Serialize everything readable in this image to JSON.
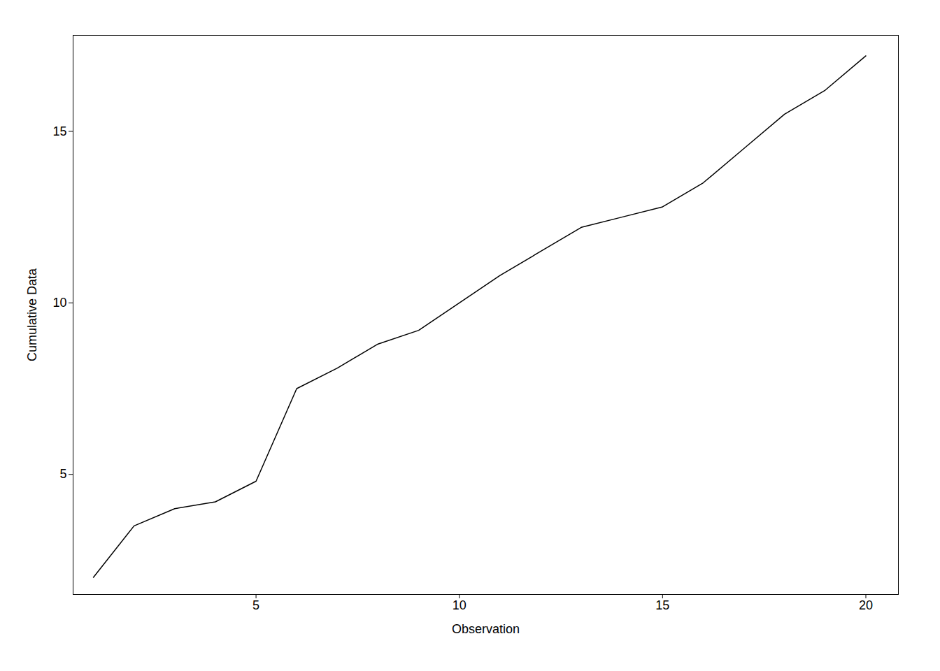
{
  "chart_data": {
    "type": "line",
    "xlabel": "Observation",
    "ylabel": "Cumulative Data",
    "x": [
      1,
      2,
      3,
      4,
      5,
      6,
      7,
      8,
      9,
      10,
      11,
      12,
      13,
      14,
      15,
      16,
      17,
      18,
      19,
      20
    ],
    "values": [
      2.0,
      3.5,
      4.0,
      4.2,
      4.8,
      7.5,
      8.1,
      8.8,
      9.2,
      10.0,
      10.8,
      11.5,
      12.2,
      12.5,
      12.8,
      13.5,
      14.5,
      15.5,
      16.2,
      17.2
    ],
    "color": "#000000",
    "xlim": [
      0.5,
      20.8
    ],
    "ylim": [
      1.5,
      17.8
    ],
    "xticks": [
      5,
      10,
      15,
      20
    ],
    "yticks": [
      5,
      10,
      15
    ],
    "grid": false
  }
}
